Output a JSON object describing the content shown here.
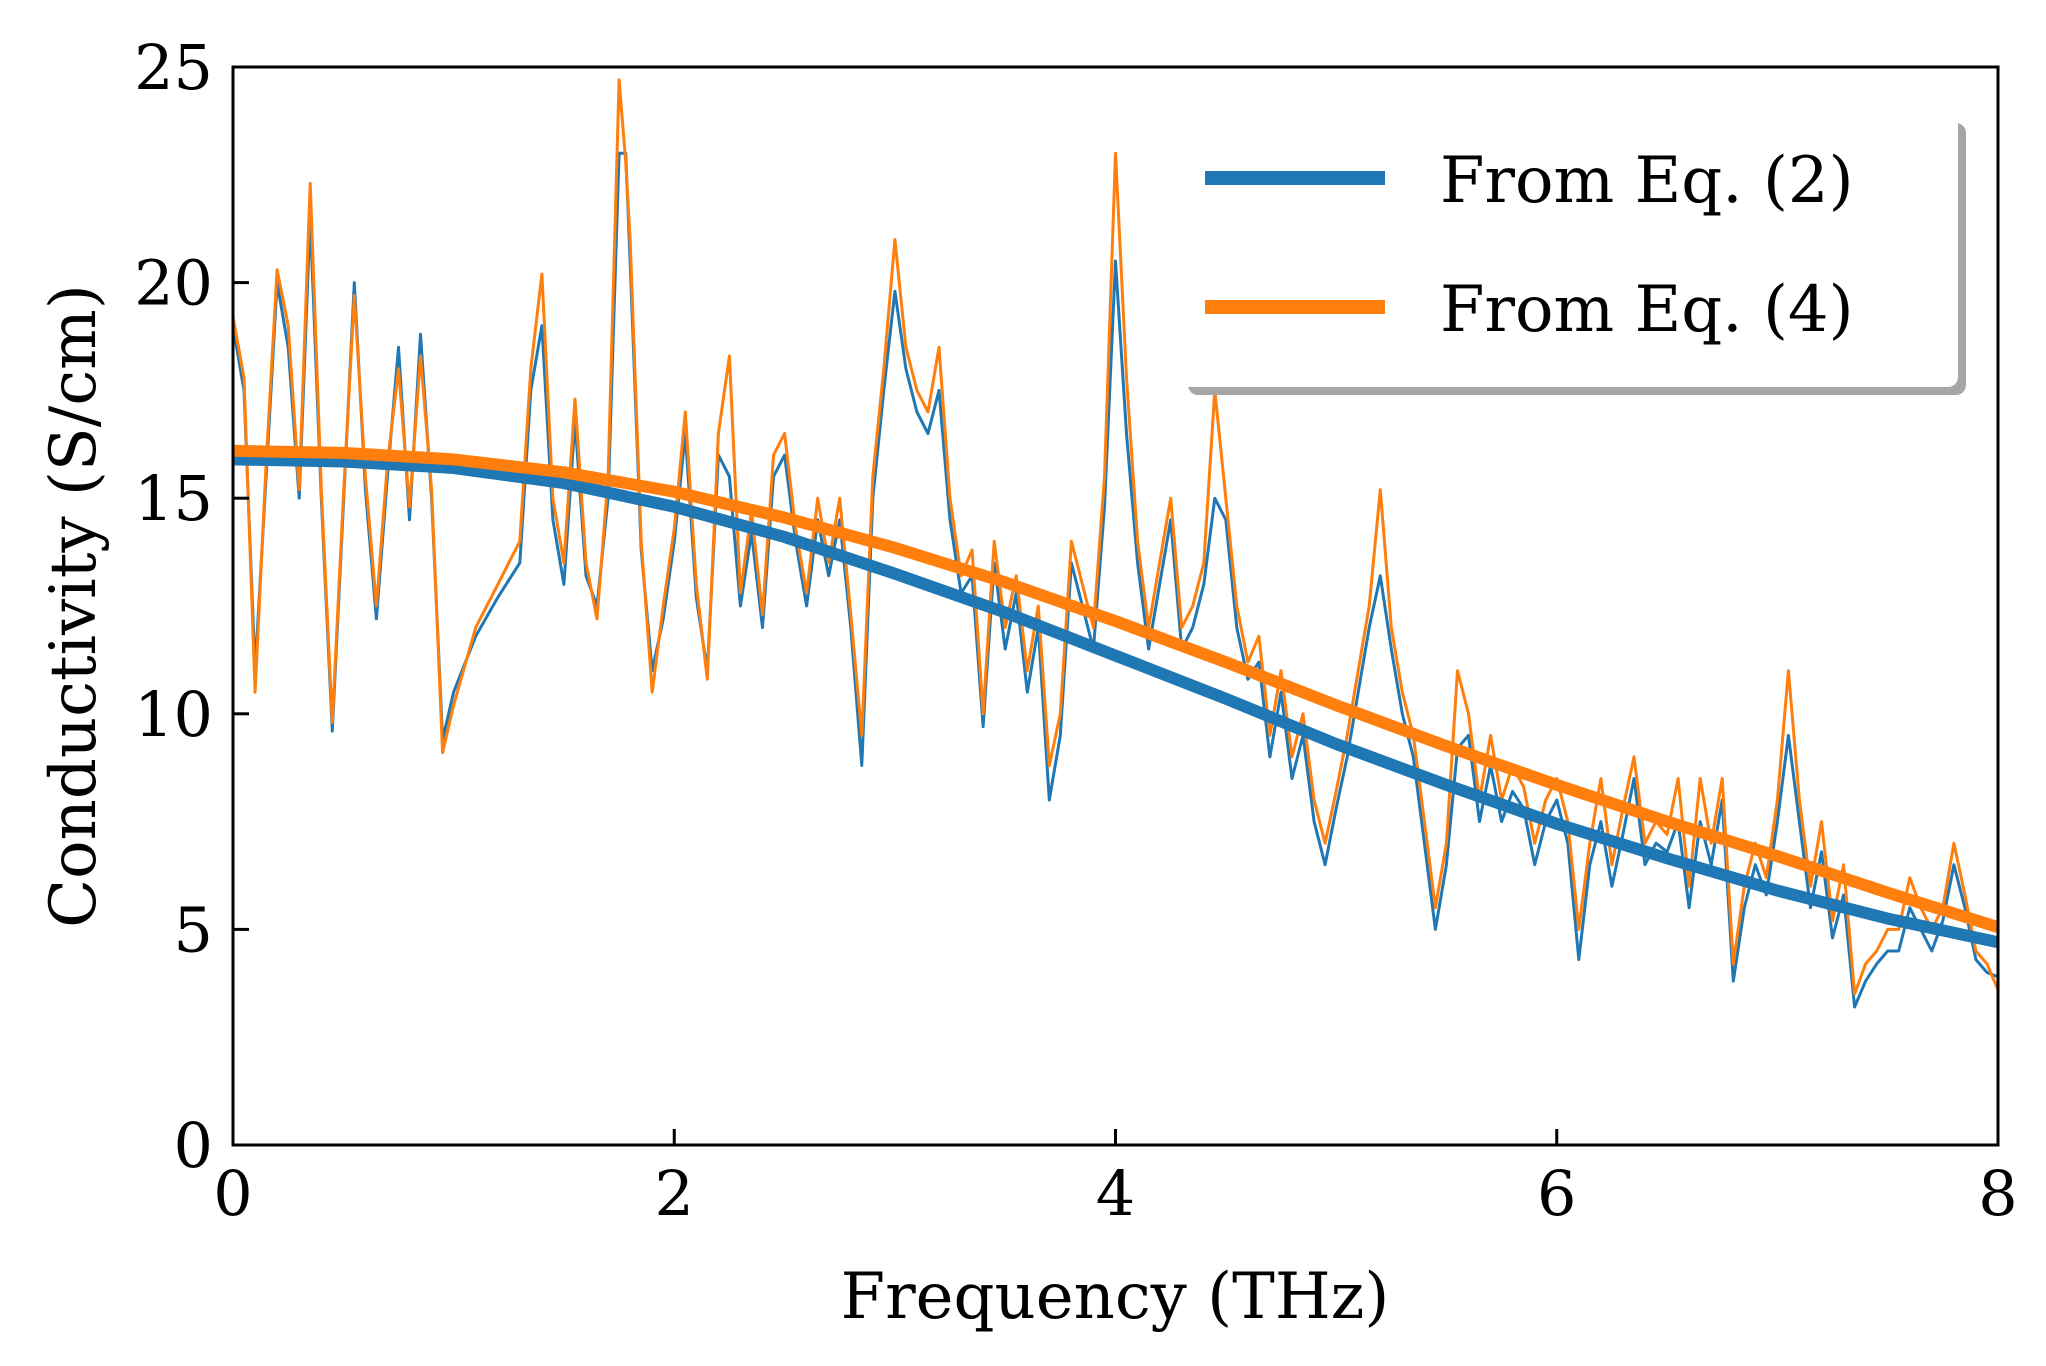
{
  "chart_data": {
    "type": "line",
    "title": "",
    "xlabel": "Frequency (THz)",
    "ylabel": "Conductivity (S/cm)",
    "xlim": [
      0,
      8
    ],
    "ylim": [
      0,
      25
    ],
    "xticks": [
      "0",
      "2",
      "4",
      "6",
      "8"
    ],
    "yticks": [
      "0",
      "5",
      "10",
      "15",
      "20",
      "25"
    ],
    "grid": false,
    "legend_position": "top-right",
    "series": [
      {
        "name": "From Eq. (2)",
        "color": "#1f77b4",
        "style": "smooth-fit",
        "x": [
          0,
          0.5,
          1.0,
          1.5,
          2.0,
          2.5,
          3.0,
          3.5,
          4.0,
          4.5,
          5.0,
          5.5,
          6.0,
          6.5,
          7.0,
          7.5,
          8.0
        ],
        "values": [
          15.9,
          15.85,
          15.7,
          15.35,
          14.8,
          14.1,
          13.25,
          12.35,
          11.35,
          10.35,
          9.3,
          8.35,
          7.45,
          6.65,
          5.9,
          5.25,
          4.7
        ]
      },
      {
        "name": "From Eq. (4)",
        "color": "#ff7f0e",
        "style": "smooth-fit",
        "x": [
          0,
          0.5,
          1.0,
          1.5,
          2.0,
          2.5,
          3.0,
          3.5,
          4.0,
          4.5,
          5.0,
          5.5,
          6.0,
          6.5,
          7.0,
          7.5,
          8.0
        ],
        "values": [
          16.1,
          16.05,
          15.9,
          15.6,
          15.15,
          14.55,
          13.85,
          13.05,
          12.15,
          11.2,
          10.2,
          9.25,
          8.35,
          7.5,
          6.7,
          5.85,
          5.05
        ]
      },
      {
        "name": "",
        "color": "#1f77b4",
        "style": "noisy",
        "x": [
          0,
          0.05,
          0.1,
          0.15,
          0.2,
          0.25,
          0.3,
          0.35,
          0.4,
          0.45,
          0.5,
          0.55,
          0.6,
          0.65,
          0.7,
          0.75,
          0.8,
          0.85,
          0.9,
          0.95,
          1.0,
          1.1,
          1.2,
          1.3,
          1.35,
          1.4,
          1.45,
          1.5,
          1.55,
          1.6,
          1.65,
          1.7,
          1.75,
          1.78,
          1.8,
          1.85,
          1.9,
          1.95,
          2.0,
          2.05,
          2.1,
          2.15,
          2.2,
          2.25,
          2.3,
          2.35,
          2.4,
          2.45,
          2.5,
          2.55,
          2.6,
          2.65,
          2.7,
          2.75,
          2.8,
          2.85,
          2.9,
          2.95,
          3.0,
          3.05,
          3.1,
          3.15,
          3.2,
          3.25,
          3.3,
          3.35,
          3.4,
          3.45,
          3.5,
          3.55,
          3.6,
          3.65,
          3.7,
          3.75,
          3.8,
          3.85,
          3.9,
          3.95,
          4.0,
          4.05,
          4.1,
          4.15,
          4.2,
          4.25,
          4.3,
          4.35,
          4.4,
          4.45,
          4.5,
          4.55,
          4.6,
          4.65,
          4.7,
          4.75,
          4.8,
          4.85,
          4.9,
          4.95,
          5.0,
          5.05,
          5.1,
          5.15,
          5.2,
          5.25,
          5.3,
          5.35,
          5.4,
          5.45,
          5.5,
          5.55,
          5.6,
          5.65,
          5.7,
          5.75,
          5.8,
          5.85,
          5.9,
          5.95,
          6.0,
          6.05,
          6.1,
          6.15,
          6.2,
          6.25,
          6.3,
          6.35,
          6.4,
          6.45,
          6.5,
          6.55,
          6.6,
          6.65,
          6.7,
          6.75,
          6.8,
          6.85,
          6.9,
          6.95,
          7.0,
          7.05,
          7.1,
          7.15,
          7.2,
          7.25,
          7.3,
          7.35,
          7.4,
          7.45,
          7.5,
          7.55,
          7.6,
          7.65,
          7.7,
          7.75,
          7.8,
          7.85,
          7.9,
          7.95,
          8.0
        ],
        "values": [
          19.0,
          17.5,
          11.0,
          15.5,
          20.0,
          18.5,
          15.0,
          21.5,
          15.0,
          9.6,
          14.8,
          20.0,
          15.2,
          12.2,
          15.5,
          18.5,
          14.5,
          18.8,
          15.0,
          9.4,
          10.5,
          11.8,
          12.7,
          13.5,
          17.5,
          19.0,
          14.5,
          13.0,
          16.8,
          13.2,
          12.5,
          15.0,
          23.0,
          23.0,
          20.5,
          13.8,
          11.0,
          12.2,
          14.0,
          16.5,
          12.7,
          11.0,
          16.0,
          15.5,
          12.5,
          14.2,
          12.0,
          15.5,
          16.0,
          14.0,
          12.5,
          14.5,
          13.2,
          14.5,
          12.0,
          8.8,
          15.0,
          17.5,
          19.8,
          18.0,
          17.0,
          16.5,
          17.5,
          14.5,
          12.8,
          13.2,
          9.7,
          13.5,
          11.5,
          12.8,
          10.5,
          12.0,
          8.0,
          9.5,
          13.5,
          12.5,
          11.5,
          14.8,
          20.5,
          16.5,
          13.5,
          11.5,
          13.0,
          14.5,
          11.5,
          12.0,
          13.0,
          15.0,
          14.5,
          12.0,
          10.8,
          11.2,
          9.0,
          10.5,
          8.5,
          9.5,
          7.5,
          6.5,
          7.8,
          9.0,
          10.5,
          12.0,
          13.2,
          11.5,
          10.0,
          9.0,
          7.0,
          5.0,
          6.5,
          9.2,
          9.5,
          7.5,
          8.8,
          7.5,
          8.2,
          7.8,
          6.5,
          7.5,
          8.0,
          7.0,
          4.3,
          6.5,
          7.5,
          6.0,
          7.2,
          8.5,
          6.5,
          7.0,
          6.8,
          7.5,
          5.5,
          7.5,
          6.5,
          8.0,
          3.8,
          5.5,
          6.5,
          5.8,
          7.5,
          9.5,
          7.5,
          5.5,
          6.8,
          4.8,
          5.8,
          3.2,
          3.8,
          4.2,
          4.5,
          4.5,
          5.5,
          5.0,
          4.5,
          5.2,
          6.5,
          5.5,
          4.3,
          4.0,
          3.9
        ]
      },
      {
        "name": "",
        "color": "#ff7f0e",
        "style": "noisy",
        "x": [
          0,
          0.05,
          0.1,
          0.15,
          0.2,
          0.25,
          0.3,
          0.35,
          0.4,
          0.45,
          0.5,
          0.55,
          0.6,
          0.65,
          0.7,
          0.75,
          0.8,
          0.85,
          0.9,
          0.95,
          1.0,
          1.1,
          1.2,
          1.3,
          1.35,
          1.4,
          1.45,
          1.5,
          1.55,
          1.6,
          1.65,
          1.7,
          1.75,
          1.78,
          1.8,
          1.85,
          1.9,
          1.95,
          2.0,
          2.05,
          2.1,
          2.15,
          2.2,
          2.25,
          2.3,
          2.35,
          2.4,
          2.45,
          2.5,
          2.55,
          2.6,
          2.65,
          2.7,
          2.75,
          2.8,
          2.85,
          2.9,
          2.95,
          3.0,
          3.05,
          3.1,
          3.15,
          3.2,
          3.25,
          3.3,
          3.35,
          3.4,
          3.45,
          3.5,
          3.55,
          3.6,
          3.65,
          3.7,
          3.75,
          3.8,
          3.85,
          3.9,
          3.95,
          4.0,
          4.05,
          4.1,
          4.15,
          4.2,
          4.25,
          4.3,
          4.35,
          4.4,
          4.45,
          4.5,
          4.55,
          4.6,
          4.65,
          4.7,
          4.75,
          4.8,
          4.85,
          4.9,
          4.95,
          5.0,
          5.05,
          5.1,
          5.15,
          5.2,
          5.25,
          5.3,
          5.35,
          5.4,
          5.45,
          5.5,
          5.55,
          5.6,
          5.65,
          5.7,
          5.75,
          5.8,
          5.85,
          5.9,
          5.95,
          6.0,
          6.05,
          6.1,
          6.15,
          6.2,
          6.25,
          6.3,
          6.35,
          6.4,
          6.45,
          6.5,
          6.55,
          6.6,
          6.65,
          6.7,
          6.75,
          6.8,
          6.85,
          6.9,
          6.95,
          7.0,
          7.05,
          7.1,
          7.15,
          7.2,
          7.25,
          7.3,
          7.35,
          7.4,
          7.45,
          7.5,
          7.55,
          7.6,
          7.65,
          7.7,
          7.75,
          7.8,
          7.85,
          7.9,
          7.95,
          8.0
        ],
        "values": [
          19.2,
          17.8,
          10.5,
          15.8,
          20.3,
          19.0,
          15.2,
          22.3,
          15.2,
          9.8,
          15.0,
          19.7,
          15.5,
          12.5,
          15.8,
          18.0,
          14.8,
          18.3,
          15.2,
          9.1,
          10.2,
          12.0,
          13.0,
          14.0,
          18.0,
          20.2,
          15.0,
          13.5,
          17.3,
          13.5,
          12.2,
          15.5,
          24.7,
          22.8,
          21.0,
          14.0,
          10.5,
          12.5,
          14.3,
          17.0,
          13.0,
          10.8,
          16.5,
          18.3,
          12.8,
          14.7,
          12.3,
          16.0,
          16.5,
          14.3,
          12.8,
          15.0,
          13.5,
          15.0,
          12.3,
          9.5,
          15.5,
          18.0,
          21.0,
          18.5,
          17.5,
          17.0,
          18.5,
          15.0,
          13.2,
          13.8,
          10.0,
          14.0,
          12.0,
          13.2,
          11.0,
          12.5,
          8.8,
          10.0,
          14.0,
          13.0,
          12.0,
          15.5,
          23.0,
          17.8,
          14.0,
          12.0,
          13.5,
          15.0,
          12.0,
          12.5,
          13.5,
          17.5,
          15.0,
          12.5,
          11.2,
          11.8,
          9.5,
          11.0,
          9.0,
          10.0,
          8.0,
          7.0,
          8.2,
          9.5,
          11.0,
          12.5,
          15.2,
          12.0,
          10.5,
          9.5,
          7.5,
          5.5,
          7.0,
          11.0,
          10.0,
          8.0,
          9.5,
          8.0,
          8.8,
          8.3,
          7.0,
          8.0,
          8.5,
          7.5,
          5.0,
          7.0,
          8.5,
          6.5,
          7.8,
          9.0,
          7.0,
          7.5,
          7.2,
          8.5,
          6.0,
          8.5,
          7.0,
          8.5,
          4.2,
          6.0,
          7.0,
          6.2,
          8.0,
          11.0,
          8.0,
          6.0,
          7.5,
          5.2,
          6.5,
          3.5,
          4.2,
          4.5,
          5.0,
          5.0,
          6.2,
          5.5,
          5.0,
          5.5,
          7.0,
          5.8,
          4.5,
          4.2,
          3.6
        ]
      }
    ]
  }
}
